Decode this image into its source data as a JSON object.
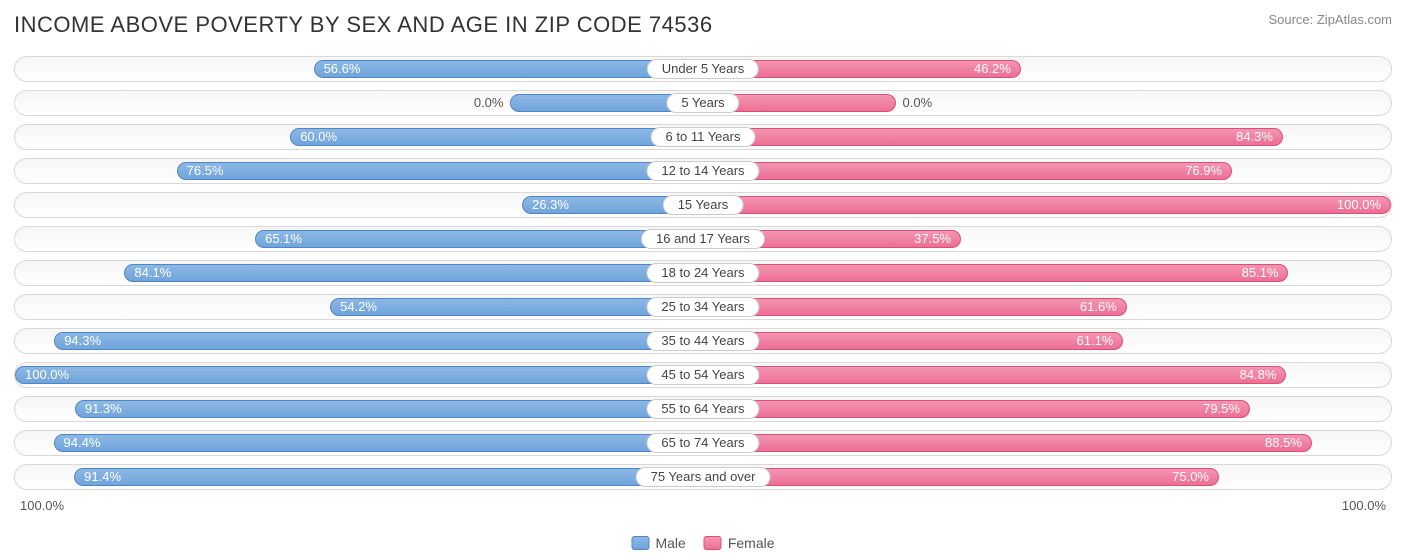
{
  "title": "INCOME ABOVE POVERTY BY SEX AND AGE IN ZIP CODE 74536",
  "source": "Source: ZipAtlas.com",
  "axis_left": "100.0%",
  "axis_right": "100.0%",
  "legend": {
    "male": "Male",
    "female": "Female"
  },
  "colors": {
    "male_fill": "#6fa4db",
    "male_grad_top": "#8db8e5",
    "male_border": "#4f86c6",
    "female_fill": "#ed6f95",
    "female_grad_top": "#f495b1",
    "female_border": "#d8507a",
    "row_border": "#d9d9d9",
    "text": "#555555",
    "title_color": "#333333",
    "background": "#ffffff"
  },
  "chart": {
    "type": "butterfly-bar",
    "max": 100.0,
    "show_zero_stub_width_pct": 14,
    "rows": [
      {
        "category": "Under 5 Years",
        "male": 56.6,
        "female": 46.2
      },
      {
        "category": "5 Years",
        "male": 0.0,
        "female": 0.0
      },
      {
        "category": "6 to 11 Years",
        "male": 60.0,
        "female": 84.3
      },
      {
        "category": "12 to 14 Years",
        "male": 76.5,
        "female": 76.9
      },
      {
        "category": "15 Years",
        "male": 26.3,
        "female": 100.0
      },
      {
        "category": "16 and 17 Years",
        "male": 65.1,
        "female": 37.5
      },
      {
        "category": "18 to 24 Years",
        "male": 84.1,
        "female": 85.1
      },
      {
        "category": "25 to 34 Years",
        "male": 54.2,
        "female": 61.6
      },
      {
        "category": "35 to 44 Years",
        "male": 94.3,
        "female": 61.1
      },
      {
        "category": "45 to 54 Years",
        "male": 100.0,
        "female": 84.8
      },
      {
        "category": "55 to 64 Years",
        "male": 91.3,
        "female": 79.5
      },
      {
        "category": "65 to 74 Years",
        "male": 94.4,
        "female": 88.5
      },
      {
        "category": "75 Years and over",
        "male": 91.4,
        "female": 75.0
      }
    ]
  }
}
